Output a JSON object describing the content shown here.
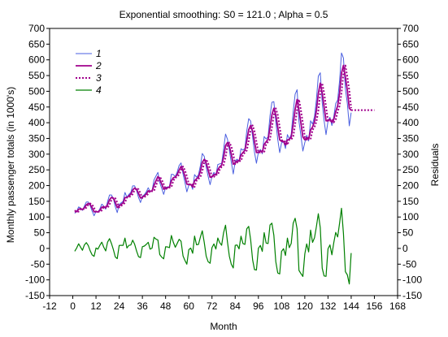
{
  "chart_data": {
    "type": "line",
    "title": "Exponential smoothing:  S0 = 121.0 ; Alpha = 0.5",
    "xlabel": "Month",
    "ylabel_left": "Monthly passenger totals (in 1000's)",
    "ylabel_right": "Residuals",
    "xlim": [
      -12,
      168
    ],
    "ylim": [
      -150,
      700
    ],
    "xticks": [
      -12,
      0,
      12,
      24,
      36,
      48,
      60,
      72,
      84,
      96,
      108,
      120,
      132,
      144,
      156,
      168
    ],
    "yticks": [
      -150,
      -100,
      -50,
      0,
      50,
      100,
      150,
      200,
      250,
      300,
      350,
      400,
      450,
      500,
      550,
      600,
      650,
      700
    ],
    "yticks_right": [
      -150,
      -100,
      -50,
      0,
      50,
      100,
      150,
      200,
      250,
      300,
      350,
      400,
      450,
      500,
      550,
      600,
      650,
      700
    ],
    "grid": false,
    "legend_position": "top-left",
    "colors": {
      "1": "#4a5fe0",
      "2": "#a0008c",
      "3": "#a0008c",
      "4": "#008000"
    },
    "series": [
      {
        "name": "1",
        "style": "solid-thin",
        "values": [
          112,
          118,
          132,
          129,
          121,
          135,
          148,
          148,
          136,
          119,
          104,
          118,
          115,
          126,
          141,
          135,
          125,
          149,
          170,
          170,
          158,
          133,
          114,
          140,
          145,
          150,
          178,
          163,
          172,
          178,
          199,
          199,
          184,
          162,
          146,
          166,
          171,
          180,
          193,
          181,
          183,
          218,
          230,
          242,
          209,
          191,
          172,
          194,
          196,
          196,
          236,
          235,
          229,
          243,
          264,
          272,
          237,
          211,
          180,
          201,
          204,
          188,
          235,
          227,
          234,
          264,
          302,
          293,
          259,
          229,
          203,
          229,
          242,
          233,
          267,
          269,
          270,
          315,
          364,
          347,
          312,
          274,
          237,
          278,
          284,
          277,
          317,
          313,
          318,
          374,
          413,
          405,
          355,
          306,
          271,
          306,
          315,
          301,
          356,
          348,
          355,
          422,
          465,
          467,
          404,
          347,
          305,
          336,
          340,
          318,
          362,
          348,
          363,
          435,
          491,
          505,
          404,
          359,
          310,
          337,
          360,
          342,
          406,
          396,
          420,
          472,
          548,
          559,
          463,
          407,
          362,
          405,
          417,
          391,
          419,
          461,
          472,
          535,
          622,
          606,
          508,
          461,
          390,
          432
        ]
      },
      {
        "name": "2",
        "style": "solid-thick",
        "values": []
      },
      {
        "name": "3",
        "style": "dotted",
        "values": [],
        "forecast_x": [
          144,
          156
        ],
        "forecast_value": 440
      },
      {
        "name": "4",
        "style": "solid-green",
        "values": []
      }
    ]
  }
}
